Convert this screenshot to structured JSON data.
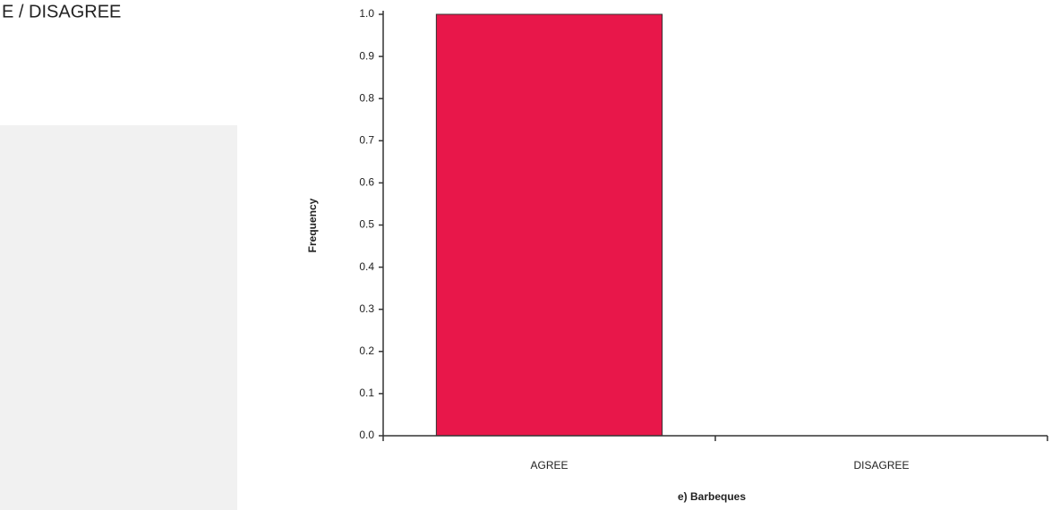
{
  "chart_data": {
    "type": "bar",
    "annotation": "E / DISAGREE",
    "xlabel": "e) Barbeques",
    "ylabel": "Frequency",
    "categories": [
      "AGREE",
      "DISAGREE"
    ],
    "values": [
      1.0,
      0
    ],
    "color": "#e8174a",
    "ylim": [
      0,
      1.0
    ],
    "yticks": [
      {
        "value": 0,
        "label": "0.0"
      },
      0.1,
      0.2,
      0.3,
      0.4,
      0.5,
      0.6,
      0.7,
      0.8,
      0.9,
      {
        "value": 1.0,
        "label": "1.0"
      }
    ],
    "grid": false
  }
}
